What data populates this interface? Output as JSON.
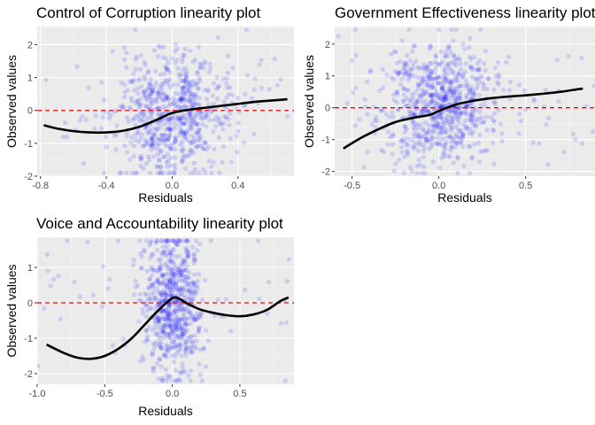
{
  "chart_data": [
    {
      "type": "scatter",
      "title": "Control of Corruption linearity plot",
      "xlabel": "Residuals",
      "ylabel": "Observed values",
      "xlim": [
        -0.82,
        0.74
      ],
      "ylim": [
        -2.0,
        2.55
      ],
      "xticks": [
        -0.8,
        -0.4,
        0.0,
        0.4
      ],
      "xtick_labels": [
        "-0.8",
        "-0.4",
        "0.0",
        "0.4"
      ],
      "yticks": [
        -2,
        -1,
        0,
        1,
        2
      ],
      "ytick_labels": [
        "-2",
        "-1",
        "0",
        "1",
        "2"
      ],
      "grid": true,
      "reference_line_y": 0,
      "point_color": "#0000ff",
      "smooth_color": "#000000",
      "ref_color": "#ff0000",
      "scatter": {
        "x_center": 0.0,
        "x_spread": 0.17,
        "y_center": -0.1,
        "y_spread": 0.95,
        "n": 700
      },
      "smooth": {
        "x": [
          -0.78,
          -0.7,
          -0.6,
          -0.5,
          -0.4,
          -0.3,
          -0.2,
          -0.1,
          0.0,
          0.1,
          0.2,
          0.3,
          0.4,
          0.5,
          0.6,
          0.7
        ],
        "y": [
          -0.45,
          -0.55,
          -0.63,
          -0.67,
          -0.67,
          -0.62,
          -0.5,
          -0.3,
          -0.08,
          0.02,
          0.08,
          0.14,
          0.2,
          0.26,
          0.3,
          0.34
        ]
      }
    },
    {
      "type": "scatter",
      "title": "Government Effectiveness linearity plot",
      "xlabel": "Residuals",
      "ylabel": "Observed values",
      "xlim": [
        -0.6,
        0.9
      ],
      "ylim": [
        -2.15,
        2.55
      ],
      "xticks": [
        -0.5,
        0.0,
        0.5
      ],
      "xtick_labels": [
        "-0.5",
        "0.0",
        "0.5"
      ],
      "yticks": [
        -2,
        -1,
        0,
        1,
        2
      ],
      "ytick_labels": [
        "-2",
        "-1",
        "0",
        "1",
        "2"
      ],
      "grid": true,
      "reference_line_y": 0,
      "point_color": "#0000ff",
      "smooth_color": "#000000",
      "ref_color": "#ff0000",
      "scatter": {
        "x_center": 0.0,
        "x_spread": 0.16,
        "y_center": 0.1,
        "y_spread": 0.9,
        "n": 800
      },
      "smooth": {
        "x": [
          -0.55,
          -0.45,
          -0.35,
          -0.25,
          -0.15,
          -0.05,
          0.0,
          0.1,
          0.2,
          0.3,
          0.4,
          0.5,
          0.6,
          0.7,
          0.8,
          0.83
        ],
        "y": [
          -1.28,
          -0.95,
          -0.68,
          -0.45,
          -0.32,
          -0.22,
          -0.1,
          0.1,
          0.22,
          0.3,
          0.35,
          0.39,
          0.44,
          0.5,
          0.58,
          0.6
        ]
      }
    },
    {
      "type": "scatter",
      "title": "Voice and Accountability linearity plot",
      "xlabel": "Residuals",
      "ylabel": "Observed values",
      "xlim": [
        -1.0,
        0.9
      ],
      "ylim": [
        -2.3,
        1.85
      ],
      "xticks": [
        -1.0,
        -0.5,
        0.0,
        0.5
      ],
      "xtick_labels": [
        "-1.0",
        "-0.5",
        "0.0",
        "0.5"
      ],
      "yticks": [
        -2,
        -1,
        0,
        1
      ],
      "ytick_labels": [
        "-2",
        "-1",
        "0",
        "1"
      ],
      "grid": true,
      "reference_line_y": 0,
      "point_color": "#0000ff",
      "smooth_color": "#000000",
      "ref_color": "#ff0000",
      "scatter": {
        "x_center": 0.0,
        "x_spread": 0.1,
        "y_center": 0.0,
        "y_spread": 1.0,
        "n": 700
      },
      "smooth": {
        "x": [
          -0.93,
          -0.8,
          -0.7,
          -0.6,
          -0.5,
          -0.4,
          -0.3,
          -0.2,
          -0.1,
          0.0,
          0.05,
          0.1,
          0.2,
          0.3,
          0.4,
          0.5,
          0.6,
          0.7,
          0.8,
          0.86
        ],
        "y": [
          -1.18,
          -1.42,
          -1.55,
          -1.58,
          -1.5,
          -1.3,
          -1.0,
          -0.6,
          -0.2,
          0.13,
          0.12,
          0.0,
          -0.18,
          -0.28,
          -0.35,
          -0.38,
          -0.33,
          -0.2,
          0.05,
          0.15
        ]
      }
    }
  ]
}
